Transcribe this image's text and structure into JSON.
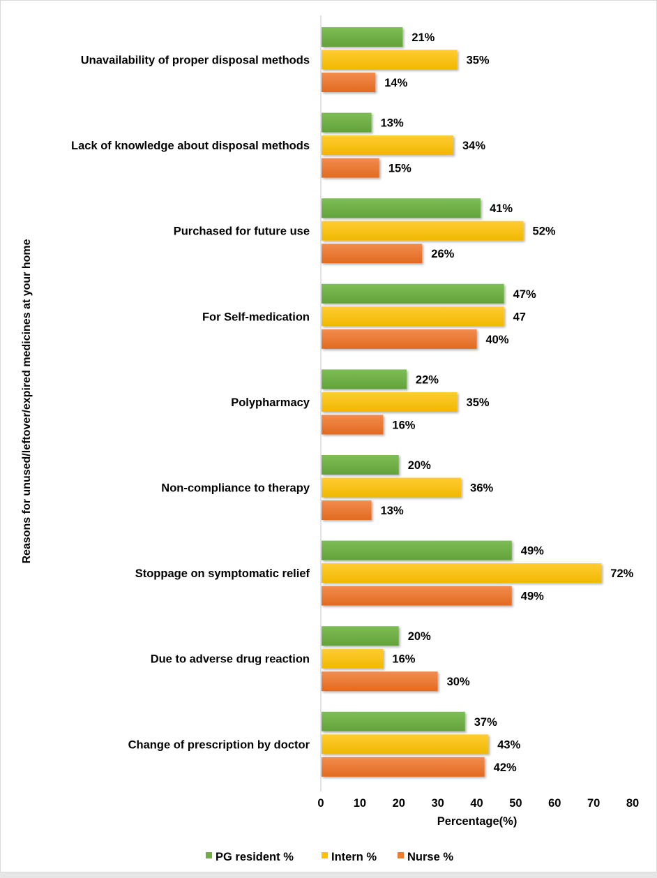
{
  "chart_data": {
    "type": "bar",
    "orientation": "horizontal",
    "title": "",
    "xlabel": "Percentage(%)",
    "ylabel": "Reasons for unused/leftover/expired medicines at your home",
    "xlim": [
      0,
      80
    ],
    "xticks": [
      0,
      10,
      20,
      30,
      40,
      50,
      60,
      70,
      80
    ],
    "grid": false,
    "legend_position": "bottom",
    "categories": [
      "Unavailability of proper disposal methods",
      "Lack of knowledge about disposal methods",
      "Purchased for future use",
      "For Self-medication",
      "Polypharmacy",
      "Non-compliance to therapy",
      "Stoppage on symptomatic relief",
      "Due to adverse drug reaction",
      "Change of prescription by doctor"
    ],
    "series": [
      {
        "name": "PG resident %",
        "color": "#70ad47",
        "values": [
          21,
          13,
          41,
          47,
          22,
          20,
          49,
          20,
          37
        ],
        "labels": [
          "21%",
          "13%",
          "41%",
          "47%",
          "22%",
          "20%",
          "49%",
          "20%",
          "37%"
        ]
      },
      {
        "name": "Intern %",
        "color": "#ffc000",
        "values": [
          35,
          34,
          52,
          47,
          35,
          36,
          72,
          16,
          43
        ],
        "labels": [
          "35%",
          "34%",
          "52%",
          "47",
          "35%",
          "36%",
          "72%",
          "16%",
          "43%"
        ]
      },
      {
        "name": "Nurse %",
        "color": "#ed7d31",
        "values": [
          14,
          15,
          26,
          40,
          16,
          13,
          49,
          30,
          42
        ],
        "labels": [
          "14%",
          "15%",
          "26%",
          "40%",
          "16%",
          "13%",
          "49%",
          "30%",
          "42%"
        ]
      }
    ]
  }
}
